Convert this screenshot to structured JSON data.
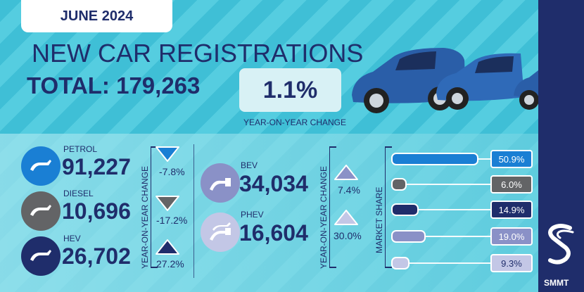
{
  "date": "JUNE 2024",
  "title": "NEW CAR REGISTRATIONS",
  "total": "TOTAL: 179,263",
  "yoy": {
    "value": "1.1%",
    "label": "YEAR-ON-YEAR CHANGE"
  },
  "fuels_left": [
    {
      "label": "PETROL",
      "value": "91,227",
      "change": "-7.8%",
      "direction": "down",
      "color": "#1a7fd4",
      "icon": "fuel-nozzle-icon"
    },
    {
      "label": "DIESEL",
      "value": "10,696",
      "change": "-17.2%",
      "direction": "down",
      "color": "#636466",
      "icon": "fuel-nozzle-icon"
    },
    {
      "label": "HEV",
      "value": "26,702",
      "change": "27.2%",
      "direction": "up",
      "color": "#1f2d6b",
      "icon": "fuel-nozzle-icon"
    }
  ],
  "fuels_right": [
    {
      "label": "BEV",
      "value": "34,034",
      "change": "7.4%",
      "direction": "up",
      "color": "#8a91c7",
      "icon": "charging-plug-icon"
    },
    {
      "label": "PHEV",
      "value": "16,604",
      "change": "30.0%",
      "direction": "up",
      "color": "#c3c7e6",
      "icon": "plug-nozzle-icon"
    }
  ],
  "change_axis_label": "YEAR-ON-YEAR CHANGE",
  "market_share": {
    "label": "MARKET SHARE",
    "items": [
      {
        "value": "50.9%",
        "share": 50.9,
        "color": "#1a7fd4"
      },
      {
        "value": "6.0%",
        "share": 6.0,
        "color": "#636466"
      },
      {
        "value": "14.9%",
        "share": 14.9,
        "color": "#1f2d6b"
      },
      {
        "value": "19.0%",
        "share": 19.0,
        "color": "#8a91c7"
      },
      {
        "value": "9.3%",
        "share": 9.3,
        "color": "#c3c7e6"
      }
    ]
  },
  "brand": "SMMT"
}
